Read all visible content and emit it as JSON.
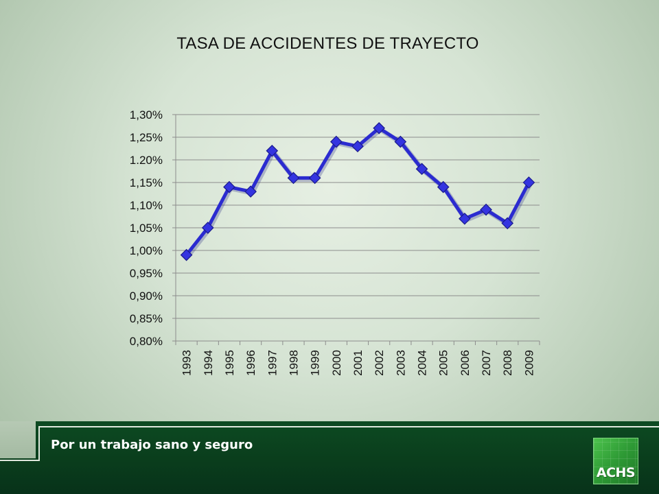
{
  "slide": {
    "footer_slogan": "Por un trabajo sano y seguro",
    "logo_text": "ACHS"
  },
  "colors": {
    "series_line": "#2b2bd0",
    "marker": "#3434e0",
    "footer_band": "#0a3d1c",
    "logo": "#2e9a35"
  },
  "chart_data": {
    "type": "line",
    "title": "TASA DE ACCIDENTES DE TRAYECTO",
    "xlabel": "",
    "ylabel": "",
    "categories": [
      "1993",
      "1994",
      "1995",
      "1996",
      "1997",
      "1998",
      "1999",
      "2000",
      "2001",
      "2002",
      "2003",
      "2004",
      "2005",
      "2006",
      "2007",
      "2008",
      "2009"
    ],
    "series": [
      {
        "values": [
          0.99,
          1.05,
          1.14,
          1.13,
          1.22,
          1.16,
          1.16,
          1.24,
          1.23,
          1.27,
          1.24,
          1.18,
          1.14,
          1.07,
          1.09,
          1.06,
          1.15
        ]
      }
    ],
    "ylim": [
      0.8,
      1.3
    ],
    "yticks": [
      0.8,
      0.85,
      0.9,
      0.95,
      1.0,
      1.05,
      1.1,
      1.15,
      1.2,
      1.25,
      1.3
    ],
    "ytick_labels": [
      "0,80%",
      "0,85%",
      "0,90%",
      "0,95%",
      "1,00%",
      "1,05%",
      "1,10%",
      "1,15%",
      "1.20%",
      "1,25%",
      "1,30%"
    ],
    "grid": "horizontal",
    "legend": "none",
    "marker": "diamond"
  }
}
